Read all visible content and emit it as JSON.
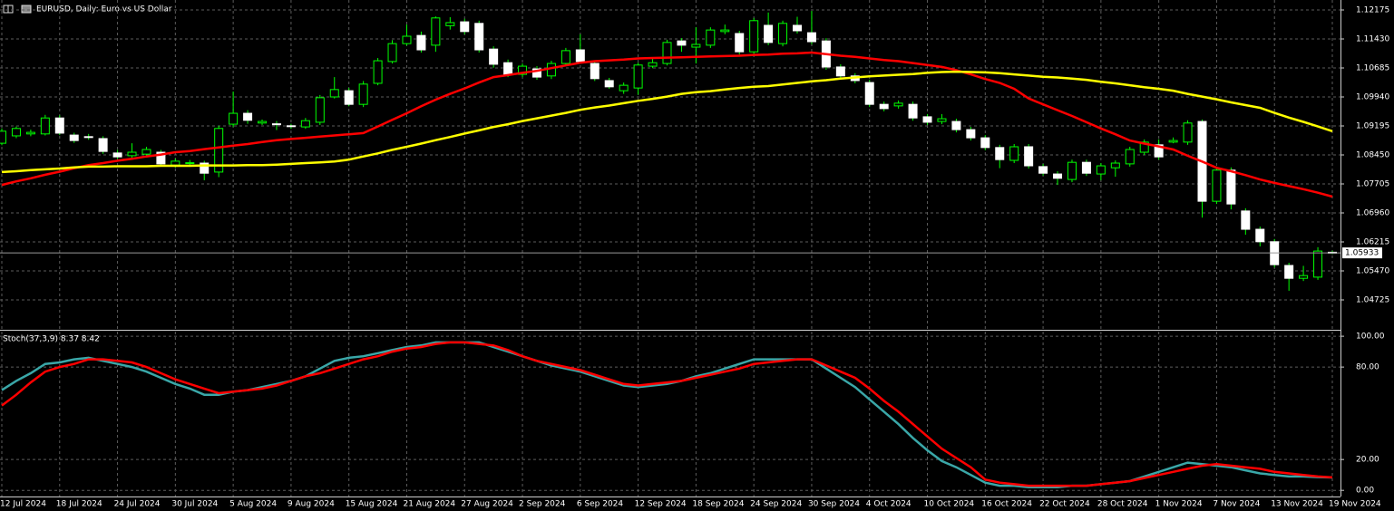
{
  "title": "EURUSD, Daily:  Euro vs US Dollar",
  "chart_data": [
    {
      "type": "candlestick",
      "categories": [
        "12 Jul 2024",
        null,
        null,
        null,
        "18 Jul 2024",
        null,
        null,
        null,
        "24 Jul 2024",
        null,
        null,
        null,
        "30 Jul 2024",
        null,
        null,
        null,
        "5 Aug 2024",
        null,
        null,
        null,
        "9 Aug 2024",
        null,
        null,
        null,
        "15 Aug 2024",
        null,
        null,
        null,
        "21 Aug 2024",
        null,
        null,
        null,
        "27 Aug 2024",
        null,
        null,
        null,
        "2 Sep 2024",
        null,
        null,
        null,
        "6 Sep 2024",
        null,
        null,
        null,
        "12 Sep 2024",
        null,
        null,
        null,
        "18 Sep 2024",
        null,
        null,
        null,
        "24 Sep 2024",
        null,
        null,
        null,
        "30 Sep 2024",
        null,
        null,
        null,
        "4 Oct 2024",
        null,
        null,
        null,
        "10 Oct 2024",
        null,
        null,
        null,
        "16 Oct 2024",
        null,
        null,
        null,
        "22 Oct 2024",
        null,
        null,
        null,
        "28 Oct 2024",
        null,
        null,
        null,
        "1 Nov 2024",
        null,
        null,
        null,
        "7 Nov 2024",
        null,
        null,
        null,
        "13 Nov 2024",
        null,
        null,
        null,
        "19 Nov 2024"
      ],
      "open": [
        1.0875,
        1.0894,
        1.0899,
        1.0899,
        1.094,
        1.0896,
        1.0892,
        1.0887,
        1.085,
        1.0843,
        1.0847,
        1.0852,
        1.0819,
        1.0824,
        1.0824,
        1.0801,
        1.0924,
        1.0952,
        1.0927,
        1.0925,
        1.092,
        1.0917,
        1.0929,
        1.0994,
        1.101,
        1.0975,
        1.1029,
        1.1085,
        1.1131,
        1.1152,
        1.1127,
        1.1177,
        1.1187,
        1.1183,
        1.1117,
        1.1082,
        1.1052,
        1.1066,
        1.1048,
        1.108,
        1.1115,
        1.108,
        1.1036,
        1.101,
        1.1017,
        1.1073,
        1.108,
        1.1138,
        1.1122,
        1.1127,
        1.1162,
        1.1157,
        1.111,
        1.1178,
        1.1131,
        1.1178,
        1.1159,
        1.1138,
        1.1071,
        1.1048,
        1.1031,
        1.0975,
        1.0971,
        1.0975,
        1.0943,
        1.0931,
        1.0931,
        1.091,
        1.0889,
        1.0864,
        1.0831,
        1.0866,
        1.0815,
        1.0796,
        1.0782,
        1.0826,
        1.0796,
        1.0812,
        1.0822,
        1.0852,
        1.0871,
        1.0878,
        1.0878,
        1.0931,
        1.0726,
        1.0806,
        1.0701,
        1.0654,
        1.0622,
        1.0561,
        1.0528,
        1.0531,
        1.0595
      ],
      "high": [
        1.0913,
        1.0918,
        1.091,
        1.0948,
        1.0947,
        1.0902,
        1.0899,
        1.0893,
        1.0858,
        1.0875,
        1.0866,
        1.0858,
        1.0836,
        1.0832,
        1.083,
        1.092,
        1.1008,
        1.096,
        1.0936,
        1.0932,
        1.0925,
        1.094,
        1.0999,
        1.1045,
        1.1017,
        1.1035,
        1.1094,
        1.114,
        1.118,
        1.1162,
        1.1201,
        1.1199,
        1.1195,
        1.119,
        1.1124,
        1.109,
        1.108,
        1.1073,
        1.1087,
        1.112,
        1.1155,
        1.1087,
        1.1043,
        1.1031,
        1.1082,
        1.1092,
        1.1141,
        1.1145,
        1.1173,
        1.1173,
        1.118,
        1.1164,
        1.1197,
        1.1211,
        1.119,
        1.12,
        1.1215,
        1.1145,
        1.1078,
        1.1055,
        1.1038,
        1.0982,
        1.0985,
        1.0982,
        1.095,
        1.095,
        1.0938,
        1.0917,
        1.0896,
        1.0871,
        1.0873,
        1.0873,
        1.0822,
        1.0803,
        1.0833,
        1.0833,
        1.0824,
        1.0831,
        1.0866,
        1.0885,
        1.0885,
        1.089,
        1.0934,
        1.0936,
        1.081,
        1.0813,
        1.0708,
        1.0661,
        1.0629,
        1.0568,
        1.056,
        1.0608,
        1.0599
      ],
      "low": [
        1.087,
        1.0888,
        1.0893,
        1.0895,
        1.0896,
        1.0876,
        1.0884,
        1.0848,
        1.0835,
        1.0838,
        1.0842,
        1.0817,
        1.0812,
        1.0818,
        1.078,
        1.0788,
        1.0917,
        1.0925,
        1.0922,
        1.0909,
        1.0912,
        1.0912,
        1.0922,
        1.099,
        1.097,
        1.0968,
        1.1024,
        1.108,
        1.1126,
        1.1108,
        1.111,
        1.1167,
        1.1155,
        1.1108,
        1.1069,
        1.1045,
        1.1045,
        1.1038,
        1.104,
        1.1075,
        1.108,
        1.1035,
        1.1015,
        1.1002,
        1.1,
        1.1068,
        1.1075,
        1.111,
        1.108,
        1.112,
        1.1155,
        1.1103,
        1.1103,
        1.1127,
        1.1124,
        1.1157,
        1.1129,
        1.1064,
        1.1041,
        1.1029,
        1.0968,
        1.0957,
        1.0964,
        1.0933,
        1.0922,
        1.0924,
        1.0903,
        1.0882,
        1.0857,
        1.0811,
        1.0824,
        1.081,
        1.0792,
        1.0768,
        1.0775,
        1.0791,
        1.078,
        1.0789,
        1.0815,
        1.0845,
        1.0833,
        1.0875,
        1.0871,
        1.0684,
        1.0719,
        1.0705,
        1.064,
        1.061,
        1.0556,
        1.0496,
        1.0521,
        1.0524,
        1.059
      ],
      "close": [
        1.0906,
        1.0913,
        1.0903,
        1.094,
        1.0901,
        1.0882,
        1.0891,
        1.0854,
        1.084,
        1.0852,
        1.0859,
        1.0822,
        1.0829,
        1.0825,
        1.0798,
        1.0913,
        1.0952,
        1.0934,
        1.0931,
        1.0924,
        1.0919,
        1.0933,
        1.0992,
        1.1013,
        1.0975,
        1.1027,
        1.1087,
        1.1131,
        1.115,
        1.1115,
        1.1197,
        1.1185,
        1.1162,
        1.1115,
        1.1078,
        1.1052,
        1.1073,
        1.1045,
        1.108,
        1.1113,
        1.1085,
        1.1041,
        1.102,
        1.1024,
        1.1076,
        1.1082,
        1.1134,
        1.1127,
        1.1129,
        1.1166,
        1.1166,
        1.111,
        1.119,
        1.1134,
        1.1183,
        1.1164,
        1.1136,
        1.1071,
        1.1048,
        1.1036,
        1.0975,
        1.0964,
        1.0978,
        1.094,
        1.0929,
        1.0938,
        1.091,
        1.0889,
        1.0864,
        1.0833,
        1.0866,
        1.0817,
        1.0798,
        1.0785,
        1.0826,
        1.0798,
        1.0817,
        1.0824,
        1.0859,
        1.0878,
        1.084,
        1.0882,
        1.0927,
        1.0726,
        1.0806,
        1.0719,
        1.0654,
        1.0622,
        1.0563,
        1.0528,
        1.0535,
        1.0598,
        1.05933
      ],
      "up_color": "#000000",
      "down_color": "#ffffff",
      "wick_color": "#00ff00",
      "series": [
        {
          "color": "#ff0000",
          "values": [
            1.0768,
            1.0777,
            1.0785,
            1.0794,
            1.0802,
            1.0811,
            1.0819,
            1.0824,
            1.083,
            1.0835,
            1.0841,
            1.0846,
            1.0852,
            1.0855,
            1.086,
            1.0864,
            1.0869,
            1.0873,
            1.0878,
            1.0883,
            1.0886,
            1.0889,
            1.0892,
            1.0895,
            1.0898,
            1.0901,
            1.0918,
            1.0935,
            1.0952,
            1.097,
            1.0987,
            1.1002,
            1.1016,
            1.1031,
            1.1045,
            1.105,
            1.1056,
            1.1061,
            1.1068,
            1.1075,
            1.1082,
            1.1086,
            1.1088,
            1.109,
            1.1093,
            1.1094,
            1.1095,
            1.1096,
            1.1097,
            1.1098,
            1.1099,
            1.11,
            1.1102,
            1.1103,
            1.1105,
            1.1106,
            1.1108,
            1.1104,
            1.11,
            1.1097,
            1.1093,
            1.1089,
            1.1086,
            1.1081,
            1.1076,
            1.1071,
            1.1063,
            1.1052,
            1.104,
            1.103,
            1.1015,
            1.099,
            1.0975,
            1.096,
            1.0945,
            1.0929,
            1.0913,
            1.0898,
            1.0882,
            1.0874,
            1.0867,
            1.0859,
            1.0843,
            1.0828,
            1.0812,
            1.0803,
            1.0793,
            1.0782,
            1.0773,
            1.0765,
            1.0757,
            1.0748,
            1.0738
          ]
        },
        {
          "color": "#ffff00",
          "values": [
            1.0801,
            1.0803,
            1.0806,
            1.0808,
            1.081,
            1.0813,
            1.0815,
            1.0815,
            1.0816,
            1.0816,
            1.0816,
            1.0817,
            1.0817,
            1.0817,
            1.0818,
            1.0818,
            1.0818,
            1.0819,
            1.0819,
            1.082,
            1.0822,
            1.0824,
            1.0826,
            1.0828,
            1.0833,
            1.0841,
            1.0849,
            1.0858,
            1.0866,
            1.0874,
            1.0883,
            1.0891,
            1.09,
            1.0908,
            1.0917,
            1.0924,
            1.0932,
            1.0939,
            1.0946,
            1.0953,
            1.0961,
            1.0967,
            1.0972,
            1.0978,
            1.0984,
            1.0989,
            1.0995,
            1.1002,
            1.1006,
            1.1009,
            1.1013,
            1.1017,
            1.102,
            1.1022,
            1.1026,
            1.103,
            1.1034,
            1.1037,
            1.1041,
            1.1044,
            1.1047,
            1.1049,
            1.1051,
            1.1053,
            1.1056,
            1.1058,
            1.1059,
            1.1058,
            1.1057,
            1.1055,
            1.1052,
            1.1049,
            1.1046,
            1.1044,
            1.1041,
            1.1038,
            1.1033,
            1.1029,
            1.1024,
            1.1019,
            1.1015,
            1.101,
            1.1002,
            1.0995,
            1.0988,
            1.098,
            1.0973,
            1.0966,
            1.0953,
            1.0941,
            1.093,
            1.0918,
            1.0906
          ]
        }
      ],
      "ylim": [
        1.03957,
        1.12431
      ],
      "yticks": [
        1.12175,
        {
          "value": 1.1143,
          "label": "1.11430"
        },
        1.10685,
        {
          "value": 1.0994,
          "label": "1.09940"
        },
        1.09195,
        {
          "value": 1.0845,
          "label": "1.08450"
        },
        1.07705,
        {
          "value": 1.0696,
          "label": "1.06960"
        },
        1.06215,
        {
          "value": 1.0547,
          "label": "1.05470"
        },
        1.04725
      ],
      "grid": true
    },
    {
      "type": "line",
      "title": "Stoch(37,3,9) 8.37 8.42",
      "series": [
        {
          "color": "#3aa7a8",
          "values": [
            65,
            71,
            76,
            82,
            83,
            85,
            86,
            84,
            82,
            80,
            77,
            73,
            69,
            66,
            62,
            62,
            64,
            65,
            67,
            69,
            71,
            74,
            79,
            84,
            86,
            87,
            89,
            91,
            93,
            94,
            96,
            96,
            96,
            96,
            93,
            90,
            87,
            84,
            81,
            79,
            77,
            74,
            71,
            68,
            67,
            68,
            69,
            71,
            74,
            76,
            79,
            82,
            85,
            85,
            85,
            85,
            85,
            79,
            73,
            67,
            59,
            51,
            43,
            34,
            26,
            19,
            15,
            10,
            5,
            3,
            3,
            2,
            2,
            2,
            3,
            3,
            4,
            5,
            6,
            9,
            12,
            15,
            18,
            17,
            16,
            15,
            13,
            11,
            10,
            9,
            9,
            8.6,
            8.37
          ]
        },
        {
          "color": "#ff0000",
          "values": [
            55,
            62,
            70,
            77,
            80,
            82,
            85,
            85,
            84,
            83,
            80,
            76,
            72,
            69,
            66,
            63,
            64,
            65,
            66,
            68,
            71,
            74,
            76,
            79,
            82,
            85,
            87,
            90,
            92,
            93,
            95,
            96,
            96,
            95,
            94,
            91,
            87,
            84,
            82,
            80,
            78,
            75,
            72,
            69,
            68,
            69,
            70,
            71,
            73,
            75,
            77,
            79,
            82,
            83,
            84,
            85,
            85,
            81,
            77,
            73,
            66,
            58,
            51,
            43,
            35,
            27,
            21,
            15,
            7,
            5,
            4,
            3,
            3,
            3,
            3,
            3,
            4,
            5,
            6,
            8,
            10,
            12,
            14,
            16,
            17,
            16,
            15,
            14,
            12,
            11,
            10,
            9,
            8.42
          ]
        }
      ],
      "ylim": [
        -4,
        103
      ],
      "yticks": [
        {
          "value": 100,
          "label": "100.00"
        },
        {
          "value": 80,
          "label": "80.00"
        },
        {
          "value": 20,
          "label": "20.00"
        },
        {
          "value": 0,
          "label": "0.00"
        }
      ],
      "grid": true
    }
  ]
}
